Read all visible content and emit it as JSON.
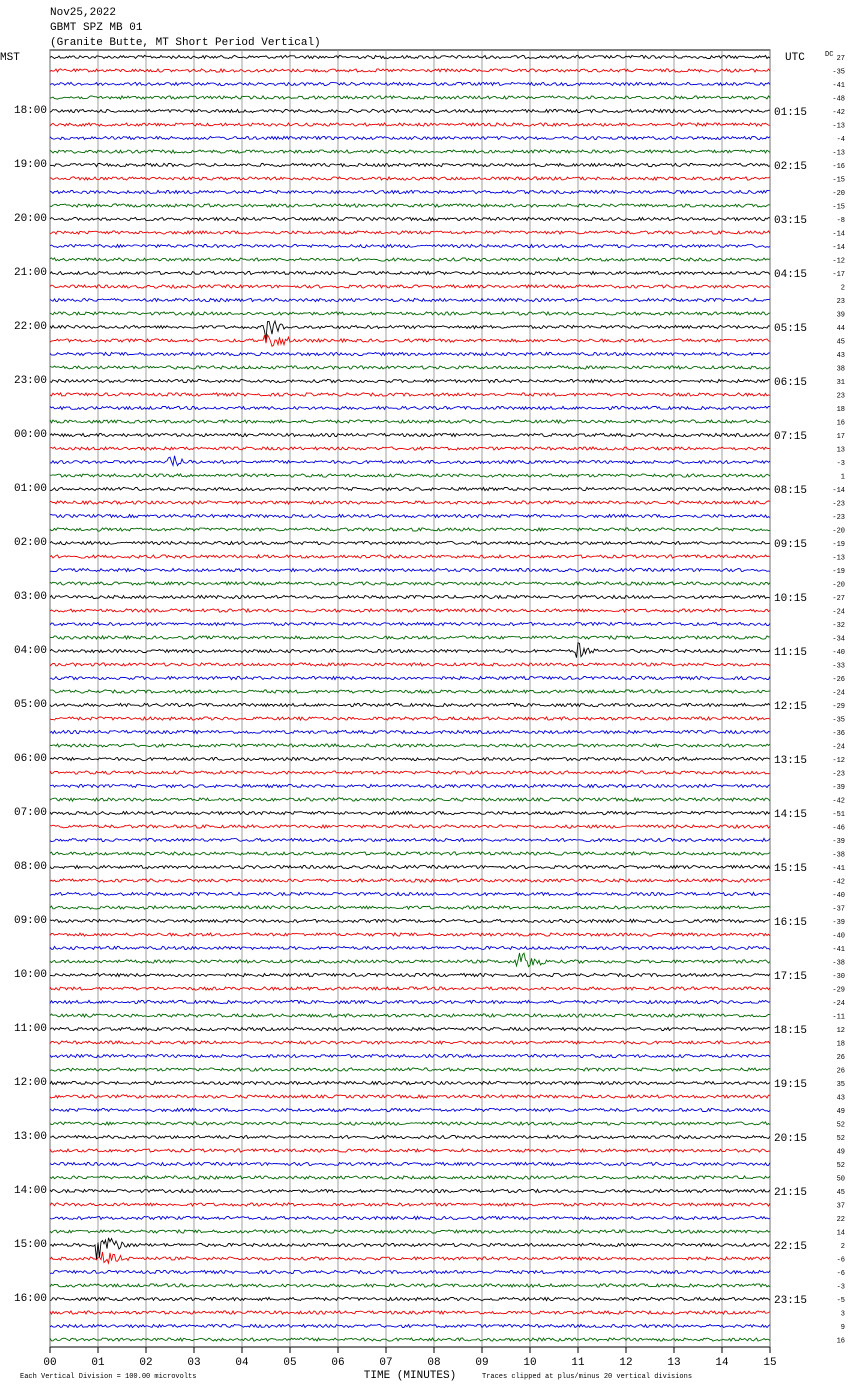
{
  "header": {
    "lines": [
      "Nov25,2022",
      "GBMT SPZ MB 01",
      "(Granite Butte, MT Short Period Vertical)"
    ]
  },
  "left_axis_label": "MST",
  "right_axis_label": "UTC",
  "dc_label": "DC",
  "mst_times": [
    "18:00",
    "19:00",
    "20:00",
    "21:00",
    "22:00",
    "23:00",
    "00:00",
    "01:00",
    "02:00",
    "03:00",
    "04:00",
    "05:00",
    "06:00",
    "07:00",
    "08:00",
    "09:00",
    "10:00",
    "11:00",
    "12:00",
    "13:00",
    "14:00",
    "15:00",
    "16:00"
  ],
  "utc_times": [
    "01:15",
    "02:15",
    "03:15",
    "04:15",
    "05:15",
    "06:15",
    "07:15",
    "08:15",
    "09:15",
    "10:15",
    "11:15",
    "12:15",
    "13:15",
    "14:15",
    "15:15",
    "16:15",
    "17:15",
    "18:15",
    "19:15",
    "20:15",
    "21:15",
    "22:15",
    "23:15"
  ],
  "dc_offsets": [
    27,
    -35,
    -41,
    -48,
    -42,
    -13,
    -4,
    -13,
    -16,
    -15,
    -20,
    -15,
    -8,
    -14,
    -14,
    -12,
    -17,
    2,
    23,
    39,
    44,
    45,
    43,
    38,
    31,
    23,
    18,
    16,
    17,
    13,
    -3,
    1,
    -14,
    -23,
    -23,
    -20,
    -19,
    -13,
    -19,
    -20,
    -27,
    -24,
    -32,
    -34,
    -40,
    -33,
    -26,
    -24,
    -29,
    -35,
    -36,
    -24,
    -12,
    -23,
    -39,
    -42,
    -51,
    -46,
    -39,
    -38,
    -41,
    -42,
    -40,
    -37,
    -39,
    -40,
    -41,
    -38,
    -30,
    -29,
    -24,
    -11,
    12,
    18,
    26,
    26,
    35,
    43,
    49,
    52,
    52,
    49,
    52,
    50,
    45,
    37,
    22,
    14,
    2,
    -6,
    -6,
    -3,
    -5,
    3,
    9,
    16
  ],
  "x_ticks": [
    "00",
    "01",
    "02",
    "03",
    "04",
    "05",
    "06",
    "07",
    "08",
    "09",
    "10",
    "11",
    "12",
    "13",
    "14",
    "15"
  ],
  "x_axis_label": "TIME (MINUTES)",
  "footer_left": "Each Vertical Division =  100.00 microvolts",
  "footer_right": "Traces clipped at plus/minus 20 vertical divisions"
}
